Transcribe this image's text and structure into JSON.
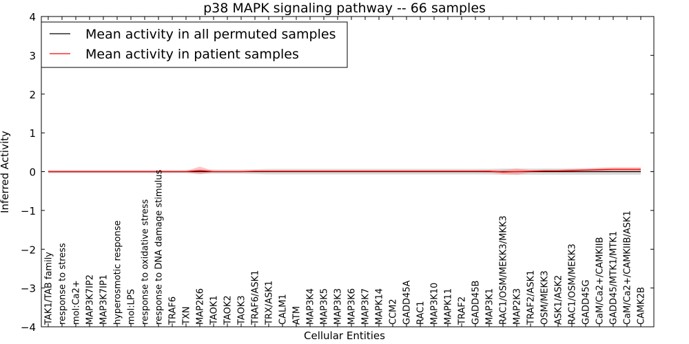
{
  "chart_data": {
    "type": "line",
    "title": "p38 MAPK signaling pathway -- 66 samples",
    "xlabel": "Cellular Entities",
    "ylabel": "Inferred Activity",
    "ylim": [
      -4,
      4
    ],
    "yticks": [
      -4,
      -3,
      -2,
      -1,
      0,
      1,
      2,
      3,
      4
    ],
    "legend_position": "top-left",
    "categories": [
      "TAK1/TAB family",
      "response to stress",
      "mol:Ca2+",
      "MAP3K7IP2",
      "MAP3K7IP1",
      "hyperosmotic response",
      "mol:LPS",
      "response to oxidative stress",
      "response to DNA damage stimulus",
      "TRAF6",
      "TXN",
      "MAP2K6",
      "TAOK1",
      "TAOK2",
      "TAOK3",
      "TRAF6/ASK1",
      "TRX/ASK1",
      "CALM1",
      "ATM",
      "MAP3K4",
      "MAP3K5",
      "MAP3K3",
      "MAP3K6",
      "MAP3K7",
      "MAPK14",
      "CCM2",
      "GADD45A",
      "RAC1",
      "MAP3K10",
      "MAPK11",
      "TRAF2",
      "GADD45B",
      "MAP3K1",
      "RAC1/OSM/MEKK3/MKK3",
      "MAP2K3",
      "TRAF2/ASK1",
      "OSM/MEKK3",
      "ASK1/ASK2",
      "RAC1/OSM/MEKK3",
      "GADD45G",
      "CaM/Ca2+/CAMKIIB",
      "GADD45/MTK1/MTK1",
      "CaM/Ca2+/CAMKIIB/ASK1",
      "CAMK2B"
    ],
    "series": [
      {
        "name": "Mean activity in all permuted samples",
        "color": "#000000",
        "values": [
          0,
          0,
          0,
          0,
          0,
          0,
          0,
          0,
          0,
          0,
          0,
          0,
          0,
          0,
          0,
          0,
          0,
          0,
          0,
          0,
          0,
          0,
          0,
          0,
          0,
          0,
          0,
          0,
          0,
          0,
          0,
          0,
          0,
          0,
          0,
          0,
          0,
          0,
          0,
          0,
          0,
          0,
          0,
          0
        ],
        "band": [
          0.04,
          0.04,
          0.04,
          0.04,
          0.04,
          0.04,
          0.04,
          0.04,
          0.04,
          0.04,
          0.04,
          0.05,
          0.05,
          0.05,
          0.05,
          0.06,
          0.07,
          0.07,
          0.07,
          0.07,
          0.07,
          0.07,
          0.07,
          0.07,
          0.07,
          0.07,
          0.07,
          0.07,
          0.07,
          0.07,
          0.07,
          0.07,
          0.07,
          0.08,
          0.08,
          0.08,
          0.08,
          0.08,
          0.08,
          0.08,
          0.08,
          0.08,
          0.08,
          0.08
        ],
        "band_color": "#999999"
      },
      {
        "name": "Mean activity in patient samples",
        "color": "#ff0000",
        "values": [
          0,
          0,
          0,
          0,
          0,
          0,
          0,
          0,
          0,
          0,
          0,
          0.03,
          0,
          0,
          0,
          0.01,
          0.01,
          0.01,
          0.01,
          0.01,
          0.01,
          0.01,
          0.01,
          0.01,
          0.01,
          0.01,
          0.01,
          0.01,
          0.01,
          0.01,
          0.01,
          0.01,
          0.01,
          -0.01,
          0,
          0.01,
          0.02,
          0.02,
          0.03,
          0.04,
          0.05,
          0.06,
          0.06,
          0.06
        ],
        "band": [
          0.02,
          0.02,
          0.02,
          0.02,
          0.02,
          0.02,
          0.02,
          0.02,
          0.02,
          0.02,
          0.02,
          0.1,
          0.02,
          0.02,
          0.02,
          0.02,
          0.02,
          0.02,
          0.02,
          0.02,
          0.02,
          0.02,
          0.02,
          0.02,
          0.02,
          0.02,
          0.02,
          0.02,
          0.02,
          0.02,
          0.02,
          0.02,
          0.03,
          0.05,
          0.08,
          0.03,
          0.03,
          0.03,
          0.04,
          0.04,
          0.05,
          0.05,
          0.05,
          0.05
        ],
        "band_color": "#ff8080"
      }
    ]
  }
}
